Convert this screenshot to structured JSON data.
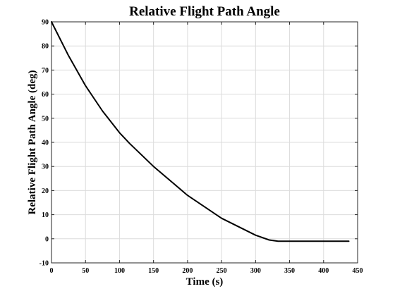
{
  "chart_data": {
    "type": "line",
    "title": "Relative Flight Path Angle",
    "xlabel": "Time (s)",
    "ylabel": "Relative Flight Path Angle (deg)",
    "xlim": [
      0,
      450
    ],
    "ylim": [
      -10,
      90
    ],
    "xticks": [
      0,
      50,
      100,
      150,
      200,
      250,
      300,
      350,
      400,
      450
    ],
    "yticks": [
      -10,
      0,
      10,
      20,
      30,
      40,
      50,
      60,
      70,
      80,
      90
    ],
    "grid": true,
    "series": [
      {
        "color": "#000000",
        "x": [
          0,
          25,
          50,
          75,
          100,
          115,
          150,
          200,
          250,
          300,
          320,
          333,
          350,
          400,
          437
        ],
        "y": [
          90,
          76,
          63.5,
          53,
          44,
          39.5,
          30,
          18,
          8.5,
          1.5,
          -0.5,
          -1,
          -1,
          -1,
          -1
        ]
      }
    ]
  }
}
